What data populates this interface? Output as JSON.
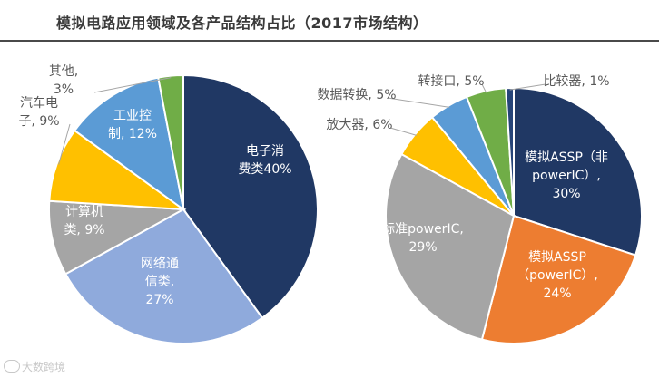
{
  "title": "模拟电路应用领域及各产品结构占比（2017市场结构）",
  "watermark": "大数跨境",
  "chart_data": [
    {
      "type": "pie",
      "slices": [
        {
          "lines": [
            "电子消",
            "费类40%"
          ],
          "value": 40,
          "color": "#203864"
        },
        {
          "lines": [
            "网络通",
            "信类,",
            "27%"
          ],
          "value": 27,
          "color": "#8FAADC"
        },
        {
          "lines": [
            "计算机",
            "类, 9%"
          ],
          "value": 9,
          "color": "#A5A5A5"
        },
        {
          "lines": [
            "汽车电",
            "子, 9%"
          ],
          "value": 9,
          "color": "#FFC000"
        },
        {
          "lines": [
            "工业控",
            "制, 12%"
          ],
          "value": 12,
          "color": "#5B9BD5"
        },
        {
          "lines": [
            "其他,",
            "3%"
          ],
          "value": 3,
          "color": "#70AD47"
        }
      ]
    },
    {
      "type": "pie",
      "slices": [
        {
          "lines": [
            "模拟ASSP（非",
            "powerIC）,",
            "30%"
          ],
          "value": 30,
          "color": "#203864"
        },
        {
          "lines": [
            "模拟ASSP",
            "（powerIC）,",
            "24%"
          ],
          "value": 24,
          "color": "#ED7D31"
        },
        {
          "lines": [
            "标准powerIC,",
            "29%"
          ],
          "value": 29,
          "color": "#A5A5A5"
        },
        {
          "lines": [
            "放大器, 6%"
          ],
          "value": 6,
          "color": "#FFC000"
        },
        {
          "lines": [
            "数据转换, 5%"
          ],
          "value": 5,
          "color": "#5B9BD5"
        },
        {
          "lines": [
            "转接口, 5%"
          ],
          "value": 5,
          "color": "#70AD47"
        },
        {
          "lines": [
            "比较器, 1%"
          ],
          "value": 1,
          "color": "#264478"
        }
      ]
    }
  ]
}
